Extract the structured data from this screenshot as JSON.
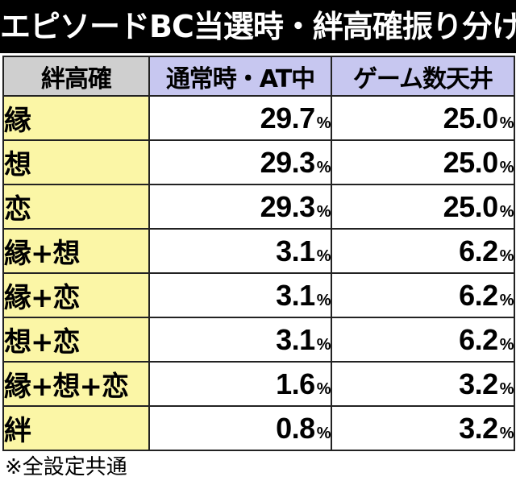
{
  "title": "エピソードBC当選時・絆高確振り分け",
  "table": {
    "headers": [
      "絆高確",
      "通常時・AT中",
      "ゲーム数天井"
    ],
    "percent_symbol": "%",
    "rows": [
      {
        "label": "縁",
        "normal": "29.7",
        "ceiling": "25.0"
      },
      {
        "label": "想",
        "normal": "29.3",
        "ceiling": "25.0"
      },
      {
        "label": "恋",
        "normal": "29.3",
        "ceiling": "25.0"
      },
      {
        "label": "縁+想",
        "normal": "3.1",
        "ceiling": "6.2"
      },
      {
        "label": "縁+恋",
        "normal": "3.1",
        "ceiling": "6.2"
      },
      {
        "label": "想+恋",
        "normal": "3.1",
        "ceiling": "6.2"
      },
      {
        "label": "縁+想+恋",
        "normal": "1.6",
        "ceiling": "3.2"
      },
      {
        "label": "絆",
        "normal": "0.8",
        "ceiling": "3.2"
      }
    ]
  },
  "note": "※全設定共通",
  "colors": {
    "title_bg": "#000000",
    "header_label_bg": "#cfcfcf",
    "header_data_bg": "#c7c7f0",
    "row_label_bg": "#fbf6a6",
    "cell_bg": "#ffffff"
  }
}
